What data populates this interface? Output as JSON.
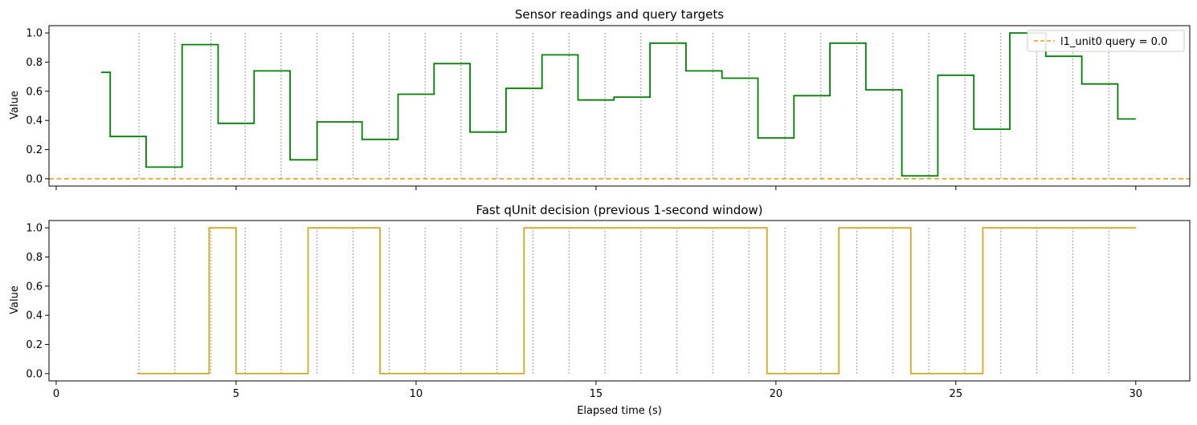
{
  "chart_data": [
    {
      "type": "line",
      "step": "post",
      "title": "Sensor readings and query targets",
      "xlabel": "",
      "ylabel": "Value",
      "xlim": [
        -0.2,
        31.5
      ],
      "ylim": [
        -0.05,
        1.05
      ],
      "yticks": [
        0.0,
        0.2,
        0.4,
        0.6,
        0.8,
        1.0
      ],
      "ytick_labels": [
        "0.0",
        "0.2",
        "0.4",
        "0.6",
        "0.8",
        "1.0"
      ],
      "xticks": [
        0,
        5,
        10,
        15,
        20,
        25,
        30
      ],
      "xtick_labels_visible": false,
      "grid": false,
      "legend_position": "top-right",
      "vlines": {
        "x": [
          2.3,
          3.3,
          4.3,
          5.25,
          6.25,
          7.25,
          8.25,
          9.25,
          10.25,
          11.25,
          12.25,
          13.25,
          14.25,
          15.25,
          16.25,
          17.25,
          18.25,
          19.25,
          20.25,
          21.25,
          22.25,
          23.25,
          24.25,
          25.25,
          26.25,
          27.25,
          28.25,
          29.25
        ],
        "color": "#808080",
        "style": "dotted"
      },
      "series": [
        {
          "color": "#008000",
          "x": [
            1.25,
            1.5,
            2.5,
            3.5,
            4.5,
            5.5,
            6.5,
            7.25,
            8.5,
            9.5,
            10.5,
            11.5,
            12.5,
            13.5,
            14.5,
            15.5,
            16.5,
            17.5,
            18.5,
            19.5,
            20.5,
            21.5,
            22.5,
            23.5,
            24.5,
            25.5,
            26.5,
            27.5,
            28.5,
            29.5,
            30.0
          ],
          "y": [
            0.73,
            0.29,
            0.08,
            0.92,
            0.38,
            0.74,
            0.13,
            0.39,
            0.27,
            0.58,
            0.79,
            0.32,
            0.62,
            0.85,
            0.54,
            0.56,
            0.93,
            0.74,
            0.69,
            0.28,
            0.57,
            0.93,
            0.61,
            0.02,
            0.71,
            0.34,
            1.0,
            0.84,
            0.65,
            0.41,
            0.41
          ]
        },
        {
          "name": "l1_unit0 query = 0.0",
          "color": "#daa520",
          "dashed": true,
          "x": [
            -0.2,
            31.5
          ],
          "y": [
            0.0,
            0.0
          ]
        }
      ]
    },
    {
      "type": "line",
      "step": "post",
      "title": "Fast qUnit decision (previous 1-second window)",
      "xlabel": "Elapsed time (s)",
      "ylabel": "Value",
      "xlim": [
        -0.2,
        31.5
      ],
      "ylim": [
        -0.05,
        1.05
      ],
      "yticks": [
        0.0,
        0.2,
        0.4,
        0.6,
        0.8,
        1.0
      ],
      "ytick_labels": [
        "0.0",
        "0.2",
        "0.4",
        "0.6",
        "0.8",
        "1.0"
      ],
      "xticks": [
        0,
        5,
        10,
        15,
        20,
        25,
        30
      ],
      "xtick_labels": [
        "0",
        "5",
        "10",
        "15",
        "20",
        "25",
        "30"
      ],
      "grid": false,
      "vlines": {
        "x": [
          2.3,
          3.3,
          4.3,
          5.25,
          6.25,
          7.25,
          8.25,
          9.25,
          10.25,
          11.25,
          12.25,
          13.25,
          14.25,
          15.25,
          16.25,
          17.25,
          18.25,
          19.25,
          20.25,
          21.25,
          22.25,
          23.25,
          24.25,
          25.25,
          26.25,
          27.25,
          28.25,
          29.25
        ],
        "color": "#808080",
        "style": "dotted"
      },
      "series": [
        {
          "color": "#daa520",
          "x": [
            2.25,
            4.25,
            5.0,
            7.0,
            9.0,
            13.0,
            19.75,
            21.75,
            23.75,
            25.75,
            30.0
          ],
          "y": [
            0,
            1,
            0,
            1,
            0,
            1,
            0,
            1,
            0,
            1,
            1
          ]
        }
      ]
    }
  ]
}
